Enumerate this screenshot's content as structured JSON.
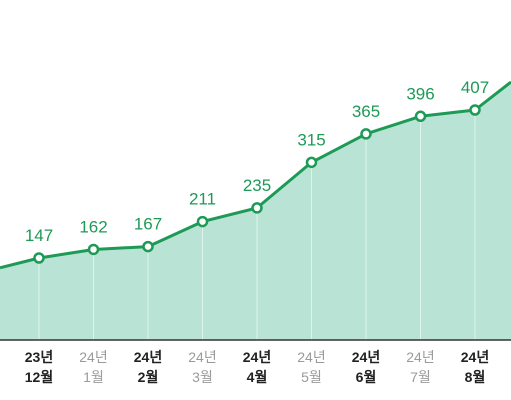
{
  "colors": {
    "area_fill": "#b9e4d5",
    "line": "#1e9a57",
    "marker_fill": "#ffffff",
    "value_label": "#1e9a57",
    "axis": "#333333",
    "tick_emphasis": "#222222",
    "tick_muted": "#9a9a9a"
  },
  "chart_data": {
    "type": "area",
    "title": "",
    "xlabel": "",
    "ylabel": "",
    "categories": [
      {
        "year": "23년",
        "month": "12월",
        "emphasis": true
      },
      {
        "year": "24년",
        "month": "1월",
        "emphasis": false
      },
      {
        "year": "24년",
        "month": "2월",
        "emphasis": true
      },
      {
        "year": "24년",
        "month": "3월",
        "emphasis": false
      },
      {
        "year": "24년",
        "month": "4월",
        "emphasis": true
      },
      {
        "year": "24년",
        "month": "5월",
        "emphasis": false
      },
      {
        "year": "24년",
        "month": "6월",
        "emphasis": true
      },
      {
        "year": "24년",
        "month": "7월",
        "emphasis": false
      },
      {
        "year": "24년",
        "month": "8월",
        "emphasis": true
      }
    ],
    "values": [
      147,
      162,
      167,
      211,
      235,
      315,
      365,
      396,
      407
    ],
    "grid": false,
    "legend": "none"
  }
}
